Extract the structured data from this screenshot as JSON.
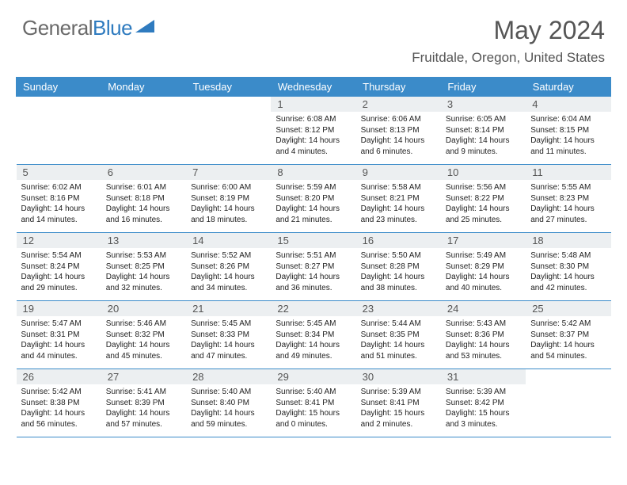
{
  "brand": {
    "name1": "General",
    "name2": "Blue"
  },
  "title": "May 2024",
  "location": "Fruitdale, Oregon, United States",
  "colors": {
    "header_bg": "#3b8bc9",
    "header_text": "#ffffff",
    "daynum_bg": "#eceff1",
    "text": "#555555",
    "body_text": "#222222",
    "brand_gray": "#6a6a6a",
    "brand_blue": "#2f7bbf"
  },
  "daysOfWeek": [
    "Sunday",
    "Monday",
    "Tuesday",
    "Wednesday",
    "Thursday",
    "Friday",
    "Saturday"
  ],
  "startOffset": 3,
  "cells": [
    {
      "n": 1,
      "sr": "6:08 AM",
      "ss": "8:12 PM",
      "dl": "14 hours and 4 minutes."
    },
    {
      "n": 2,
      "sr": "6:06 AM",
      "ss": "8:13 PM",
      "dl": "14 hours and 6 minutes."
    },
    {
      "n": 3,
      "sr": "6:05 AM",
      "ss": "8:14 PM",
      "dl": "14 hours and 9 minutes."
    },
    {
      "n": 4,
      "sr": "6:04 AM",
      "ss": "8:15 PM",
      "dl": "14 hours and 11 minutes."
    },
    {
      "n": 5,
      "sr": "6:02 AM",
      "ss": "8:16 PM",
      "dl": "14 hours and 14 minutes."
    },
    {
      "n": 6,
      "sr": "6:01 AM",
      "ss": "8:18 PM",
      "dl": "14 hours and 16 minutes."
    },
    {
      "n": 7,
      "sr": "6:00 AM",
      "ss": "8:19 PM",
      "dl": "14 hours and 18 minutes."
    },
    {
      "n": 8,
      "sr": "5:59 AM",
      "ss": "8:20 PM",
      "dl": "14 hours and 21 minutes."
    },
    {
      "n": 9,
      "sr": "5:58 AM",
      "ss": "8:21 PM",
      "dl": "14 hours and 23 minutes."
    },
    {
      "n": 10,
      "sr": "5:56 AM",
      "ss": "8:22 PM",
      "dl": "14 hours and 25 minutes."
    },
    {
      "n": 11,
      "sr": "5:55 AM",
      "ss": "8:23 PM",
      "dl": "14 hours and 27 minutes."
    },
    {
      "n": 12,
      "sr": "5:54 AM",
      "ss": "8:24 PM",
      "dl": "14 hours and 29 minutes."
    },
    {
      "n": 13,
      "sr": "5:53 AM",
      "ss": "8:25 PM",
      "dl": "14 hours and 32 minutes."
    },
    {
      "n": 14,
      "sr": "5:52 AM",
      "ss": "8:26 PM",
      "dl": "14 hours and 34 minutes."
    },
    {
      "n": 15,
      "sr": "5:51 AM",
      "ss": "8:27 PM",
      "dl": "14 hours and 36 minutes."
    },
    {
      "n": 16,
      "sr": "5:50 AM",
      "ss": "8:28 PM",
      "dl": "14 hours and 38 minutes."
    },
    {
      "n": 17,
      "sr": "5:49 AM",
      "ss": "8:29 PM",
      "dl": "14 hours and 40 minutes."
    },
    {
      "n": 18,
      "sr": "5:48 AM",
      "ss": "8:30 PM",
      "dl": "14 hours and 42 minutes."
    },
    {
      "n": 19,
      "sr": "5:47 AM",
      "ss": "8:31 PM",
      "dl": "14 hours and 44 minutes."
    },
    {
      "n": 20,
      "sr": "5:46 AM",
      "ss": "8:32 PM",
      "dl": "14 hours and 45 minutes."
    },
    {
      "n": 21,
      "sr": "5:45 AM",
      "ss": "8:33 PM",
      "dl": "14 hours and 47 minutes."
    },
    {
      "n": 22,
      "sr": "5:45 AM",
      "ss": "8:34 PM",
      "dl": "14 hours and 49 minutes."
    },
    {
      "n": 23,
      "sr": "5:44 AM",
      "ss": "8:35 PM",
      "dl": "14 hours and 51 minutes."
    },
    {
      "n": 24,
      "sr": "5:43 AM",
      "ss": "8:36 PM",
      "dl": "14 hours and 53 minutes."
    },
    {
      "n": 25,
      "sr": "5:42 AM",
      "ss": "8:37 PM",
      "dl": "14 hours and 54 minutes."
    },
    {
      "n": 26,
      "sr": "5:42 AM",
      "ss": "8:38 PM",
      "dl": "14 hours and 56 minutes."
    },
    {
      "n": 27,
      "sr": "5:41 AM",
      "ss": "8:39 PM",
      "dl": "14 hours and 57 minutes."
    },
    {
      "n": 28,
      "sr": "5:40 AM",
      "ss": "8:40 PM",
      "dl": "14 hours and 59 minutes."
    },
    {
      "n": 29,
      "sr": "5:40 AM",
      "ss": "8:41 PM",
      "dl": "15 hours and 0 minutes."
    },
    {
      "n": 30,
      "sr": "5:39 AM",
      "ss": "8:41 PM",
      "dl": "15 hours and 2 minutes."
    },
    {
      "n": 31,
      "sr": "5:39 AM",
      "ss": "8:42 PM",
      "dl": "15 hours and 3 minutes."
    }
  ],
  "labels": {
    "sunrise": "Sunrise: ",
    "sunset": "Sunset: ",
    "daylight": "Daylight: "
  }
}
